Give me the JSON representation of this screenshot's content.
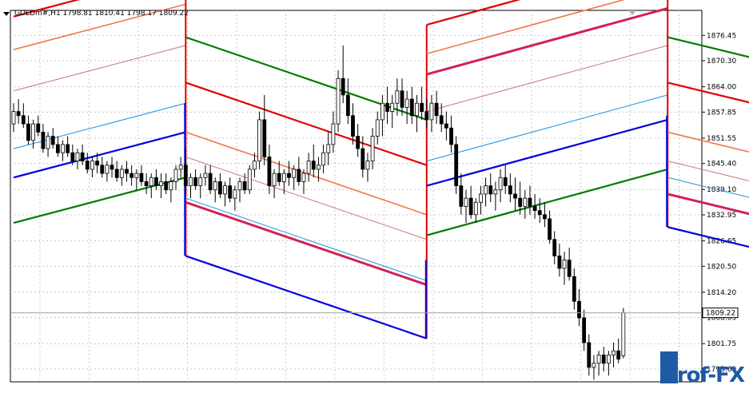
{
  "header": {
    "symbol_label": "GOLDm#,H1  1798.81 1810.41 1798.17 1809.22"
  },
  "price_tag": "1809.22",
  "watermark": "Prof-FX",
  "chart_data": {
    "type": "candlestick",
    "title": "GOLDm#,H1",
    "ohlc_latest": {
      "open": 1798.81,
      "high": 1810.41,
      "low": 1798.17,
      "close": 1809.22
    },
    "y_ticks": [
      "1876.45",
      "1870.30",
      "1864.00",
      "1857.85",
      "1851.55",
      "1845.40",
      "1839.10",
      "1832.95",
      "1826.65",
      "1820.50",
      "1814.20",
      "1808.05",
      "1801.75",
      "1795.60"
    ],
    "ylim": [
      1792.5,
      1882.5
    ],
    "grid": true,
    "channel_segments": [
      {
        "x_start": 0,
        "x_end": 35,
        "mid_start": 1849,
        "mid_end": 1860,
        "lines": [
          {
            "name": "upper3",
            "color": "#e00000",
            "offset": 32
          },
          {
            "name": "upper2",
            "color": "#f07850",
            "offset": 24
          },
          {
            "name": "upper1",
            "color": "#c87878",
            "offset": 14
          },
          {
            "name": "centre",
            "color": "#1e90e0",
            "offset": 0
          },
          {
            "name": "lower1",
            "color": "#0000dd",
            "offset": -7
          },
          {
            "name": "lower2",
            "color": "#007a00",
            "offset": -18
          }
        ]
      },
      {
        "x_start": 35,
        "x_end": 84,
        "mid_start": 1842,
        "mid_end": 1822,
        "lines": [
          {
            "name": "green",
            "color": "#007a00",
            "offset": 34
          },
          {
            "name": "red",
            "color": "#e00000",
            "offset": 23
          },
          {
            "name": "orange",
            "color": "#f07850",
            "offset": 11
          },
          {
            "name": "thin",
            "color": "#c87878",
            "offset": 5
          },
          {
            "name": "centre",
            "color": "#1e90e0",
            "offset": -5
          },
          {
            "name": "crimson",
            "color": "#d42050",
            "offset": -6
          },
          {
            "name": "blue",
            "color": "#0000dd",
            "offset": -19
          }
        ]
      },
      {
        "x_start": 84,
        "x_end": 133,
        "mid_start": 1841,
        "mid_end": 1857,
        "lines": [
          {
            "name": "red",
            "color": "#e00000",
            "offset": 38
          },
          {
            "name": "orange",
            "color": "#f07850",
            "offset": 31
          },
          {
            "name": "crimson",
            "color": "#d42050",
            "offset": 26
          },
          {
            "name": "thin",
            "color": "#c87878",
            "offset": 17
          },
          {
            "name": "centre",
            "color": "#1e90e0",
            "offset": 5
          },
          {
            "name": "blue",
            "color": "#0000dd",
            "offset": -1
          },
          {
            "name": "green",
            "color": "#007a00",
            "offset": -13
          }
        ]
      },
      {
        "x_start": 133,
        "x_end": 202,
        "mid_start": 1838,
        "mid_end": 1818,
        "lines": [
          {
            "name": "green",
            "color": "#007a00",
            "offset": 38
          },
          {
            "name": "red",
            "color": "#e00000",
            "offset": 27
          },
          {
            "name": "orange",
            "color": "#f07850",
            "offset": 15
          },
          {
            "name": "thin",
            "color": "#c87878",
            "offset": 8
          },
          {
            "name": "centre",
            "color": "#1e90e0",
            "offset": 4
          },
          {
            "name": "crimson",
            "color": "#d42050",
            "offset": 0
          },
          {
            "name": "blue",
            "color": "#0000dd",
            "offset": -8
          }
        ]
      }
    ],
    "candles": [
      [
        1855,
        1860,
        1853,
        1858
      ],
      [
        1858,
        1861,
        1855,
        1857
      ],
      [
        1857,
        1860,
        1854,
        1855
      ],
      [
        1855,
        1857,
        1850,
        1851
      ],
      [
        1851,
        1856,
        1849,
        1855
      ],
      [
        1855,
        1857,
        1852,
        1853
      ],
      [
        1853,
        1855,
        1848,
        1849
      ],
      [
        1849,
        1853,
        1847,
        1852
      ],
      [
        1852,
        1854,
        1849,
        1850
      ],
      [
        1850,
        1852,
        1847,
        1848
      ],
      [
        1848,
        1851,
        1846,
        1850
      ],
      [
        1850,
        1852,
        1847,
        1848
      ],
      [
        1848,
        1850,
        1845,
        1846
      ],
      [
        1846,
        1849,
        1844,
        1848
      ],
      [
        1848,
        1850,
        1845,
        1846
      ],
      [
        1846,
        1848,
        1843,
        1844
      ],
      [
        1844,
        1847,
        1842,
        1846
      ],
      [
        1846,
        1848,
        1843,
        1845
      ],
      [
        1845,
        1847,
        1842,
        1843
      ],
      [
        1843,
        1846,
        1841,
        1845
      ],
      [
        1845,
        1847,
        1842,
        1844
      ],
      [
        1844,
        1846,
        1841,
        1842
      ],
      [
        1842,
        1845,
        1840,
        1844
      ],
      [
        1844,
        1846,
        1841,
        1843
      ],
      [
        1843,
        1845,
        1840,
        1842
      ],
      [
        1842,
        1844,
        1839,
        1843
      ],
      [
        1843,
        1845,
        1840,
        1841
      ],
      [
        1841,
        1843,
        1838,
        1840
      ],
      [
        1840,
        1843,
        1837,
        1842
      ],
      [
        1842,
        1844,
        1839,
        1840
      ],
      [
        1840,
        1843,
        1837,
        1841
      ],
      [
        1841,
        1843,
        1838,
        1839
      ],
      [
        1839,
        1842,
        1836,
        1841
      ],
      [
        1841,
        1845,
        1839,
        1844
      ],
      [
        1844,
        1847,
        1842,
        1845
      ],
      [
        1845,
        1849,
        1838,
        1840
      ],
      [
        1840,
        1843,
        1837,
        1842
      ],
      [
        1842,
        1844,
        1839,
        1840
      ],
      [
        1840,
        1843,
        1837,
        1842
      ],
      [
        1842,
        1845,
        1840,
        1843
      ],
      [
        1843,
        1845,
        1838,
        1839
      ],
      [
        1839,
        1842,
        1836,
        1841
      ],
      [
        1841,
        1843,
        1837,
        1838
      ],
      [
        1838,
        1841,
        1835,
        1840
      ],
      [
        1840,
        1842,
        1836,
        1837
      ],
      [
        1837,
        1840,
        1834,
        1839
      ],
      [
        1839,
        1842,
        1836,
        1841
      ],
      [
        1841,
        1843,
        1838,
        1839
      ],
      [
        1839,
        1845,
        1838,
        1844
      ],
      [
        1844,
        1848,
        1842,
        1846
      ],
      [
        1846,
        1858,
        1844,
        1856
      ],
      [
        1856,
        1862,
        1845,
        1847
      ],
      [
        1847,
        1850,
        1838,
        1840
      ],
      [
        1840,
        1844,
        1837,
        1843
      ],
      [
        1843,
        1846,
        1840,
        1841
      ],
      [
        1841,
        1844,
        1838,
        1843
      ],
      [
        1843,
        1846,
        1840,
        1842
      ],
      [
        1842,
        1845,
        1839,
        1844
      ],
      [
        1844,
        1847,
        1840,
        1841
      ],
      [
        1841,
        1844,
        1838,
        1843
      ],
      [
        1843,
        1848,
        1841,
        1846
      ],
      [
        1846,
        1850,
        1842,
        1844
      ],
      [
        1844,
        1847,
        1841,
        1845
      ],
      [
        1845,
        1850,
        1843,
        1848
      ],
      [
        1848,
        1853,
        1845,
        1850
      ],
      [
        1850,
        1858,
        1848,
        1855
      ],
      [
        1855,
        1868,
        1853,
        1866
      ],
      [
        1866,
        1874,
        1860,
        1862
      ],
      [
        1862,
        1866,
        1855,
        1857
      ],
      [
        1857,
        1860,
        1850,
        1852
      ],
      [
        1852,
        1855,
        1847,
        1849
      ],
      [
        1849,
        1852,
        1842,
        1844
      ],
      [
        1844,
        1848,
        1841,
        1846
      ],
      [
        1846,
        1854,
        1844,
        1852
      ],
      [
        1852,
        1858,
        1850,
        1856
      ],
      [
        1856,
        1862,
        1852,
        1860
      ],
      [
        1860,
        1864,
        1855,
        1858
      ],
      [
        1858,
        1862,
        1854,
        1860
      ],
      [
        1860,
        1866,
        1857,
        1863
      ],
      [
        1863,
        1866,
        1857,
        1859
      ],
      [
        1859,
        1863,
        1855,
        1861
      ],
      [
        1861,
        1864,
        1855,
        1857
      ],
      [
        1857,
        1862,
        1853,
        1860
      ],
      [
        1860,
        1864,
        1856,
        1858
      ],
      [
        1858,
        1861,
        1854,
        1856
      ],
      [
        1856,
        1862,
        1853,
        1860
      ],
      [
        1860,
        1863,
        1855,
        1857
      ],
      [
        1857,
        1860,
        1853,
        1855
      ],
      [
        1855,
        1858,
        1851,
        1854
      ],
      [
        1854,
        1857,
        1848,
        1850
      ],
      [
        1850,
        1852,
        1838,
        1840
      ],
      [
        1840,
        1843,
        1833,
        1835
      ],
      [
        1835,
        1839,
        1831,
        1837
      ],
      [
        1837,
        1840,
        1832,
        1833
      ],
      [
        1833,
        1837,
        1831,
        1836
      ],
      [
        1836,
        1840,
        1833,
        1838
      ],
      [
        1838,
        1842,
        1835,
        1840
      ],
      [
        1840,
        1843,
        1836,
        1838
      ],
      [
        1838,
        1841,
        1834,
        1839
      ],
      [
        1839,
        1844,
        1836,
        1842
      ],
      [
        1842,
        1845,
        1838,
        1840
      ],
      [
        1840,
        1843,
        1836,
        1838
      ],
      [
        1838,
        1842,
        1834,
        1837
      ],
      [
        1837,
        1841,
        1833,
        1835
      ],
      [
        1835,
        1839,
        1832,
        1837
      ],
      [
        1837,
        1840,
        1833,
        1835
      ],
      [
        1835,
        1838,
        1832,
        1834
      ],
      [
        1834,
        1837,
        1831,
        1833
      ],
      [
        1833,
        1836,
        1830,
        1832
      ],
      [
        1832,
        1834,
        1826,
        1827
      ],
      [
        1827,
        1829,
        1821,
        1823
      ],
      [
        1823,
        1826,
        1818,
        1820
      ],
      [
        1820,
        1824,
        1816,
        1822
      ],
      [
        1822,
        1825,
        1817,
        1818
      ],
      [
        1818,
        1820,
        1810,
        1812
      ],
      [
        1812,
        1815,
        1806,
        1808
      ],
      [
        1808,
        1810,
        1800,
        1802
      ],
      [
        1802,
        1804,
        1794,
        1796
      ],
      [
        1796,
        1799,
        1793,
        1797
      ],
      [
        1797,
        1800,
        1794,
        1799
      ],
      [
        1799,
        1801,
        1795,
        1797
      ],
      [
        1797,
        1800,
        1794,
        1799
      ],
      [
        1799,
        1802,
        1796,
        1800
      ],
      [
        1800,
        1803,
        1797,
        1798
      ],
      [
        1798.81,
        1810.41,
        1798.17,
        1809.22
      ]
    ]
  }
}
